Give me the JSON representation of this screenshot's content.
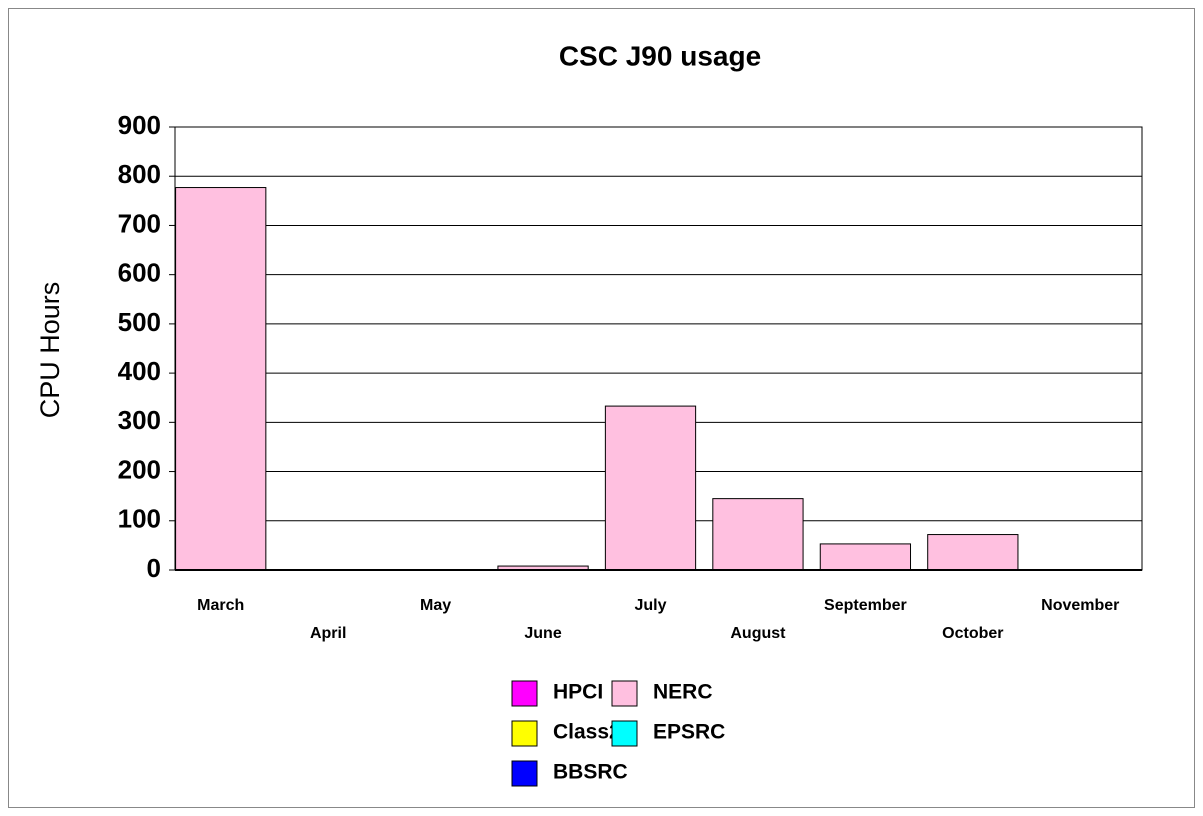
{
  "chart_data": {
    "type": "stacked_bar",
    "title": "CSC J90 usage",
    "y_label": "CPU Hours",
    "categories": [
      "March",
      "April",
      "May",
      "June",
      "July",
      "August",
      "September",
      "October",
      "November"
    ],
    "series": [
      {
        "name": "HPCI",
        "color": "#ff00ff",
        "values": [
          0,
          0,
          0,
          0,
          0,
          0,
          0,
          0,
          0
        ]
      },
      {
        "name": "Class2",
        "color": "#ffff00",
        "values": [
          0,
          0,
          0,
          0,
          0,
          0,
          0,
          0,
          0
        ]
      },
      {
        "name": "BBSRC",
        "color": "#0000ff",
        "values": [
          0,
          0,
          0,
          0,
          0,
          0,
          0,
          0,
          0
        ]
      },
      {
        "name": "NERC",
        "color": "#ffc0e0",
        "values": [
          777,
          0,
          0,
          8,
          333,
          145,
          53,
          72,
          0
        ]
      },
      {
        "name": "EPSRC",
        "color": "#00ffff",
        "values": [
          0,
          0,
          0,
          0,
          0,
          0,
          0,
          0,
          0
        ]
      }
    ],
    "ylim": [
      0,
      900
    ],
    "yticks": [
      0,
      100,
      200,
      300,
      400,
      500,
      600,
      700,
      800,
      900
    ],
    "grid": true
  }
}
